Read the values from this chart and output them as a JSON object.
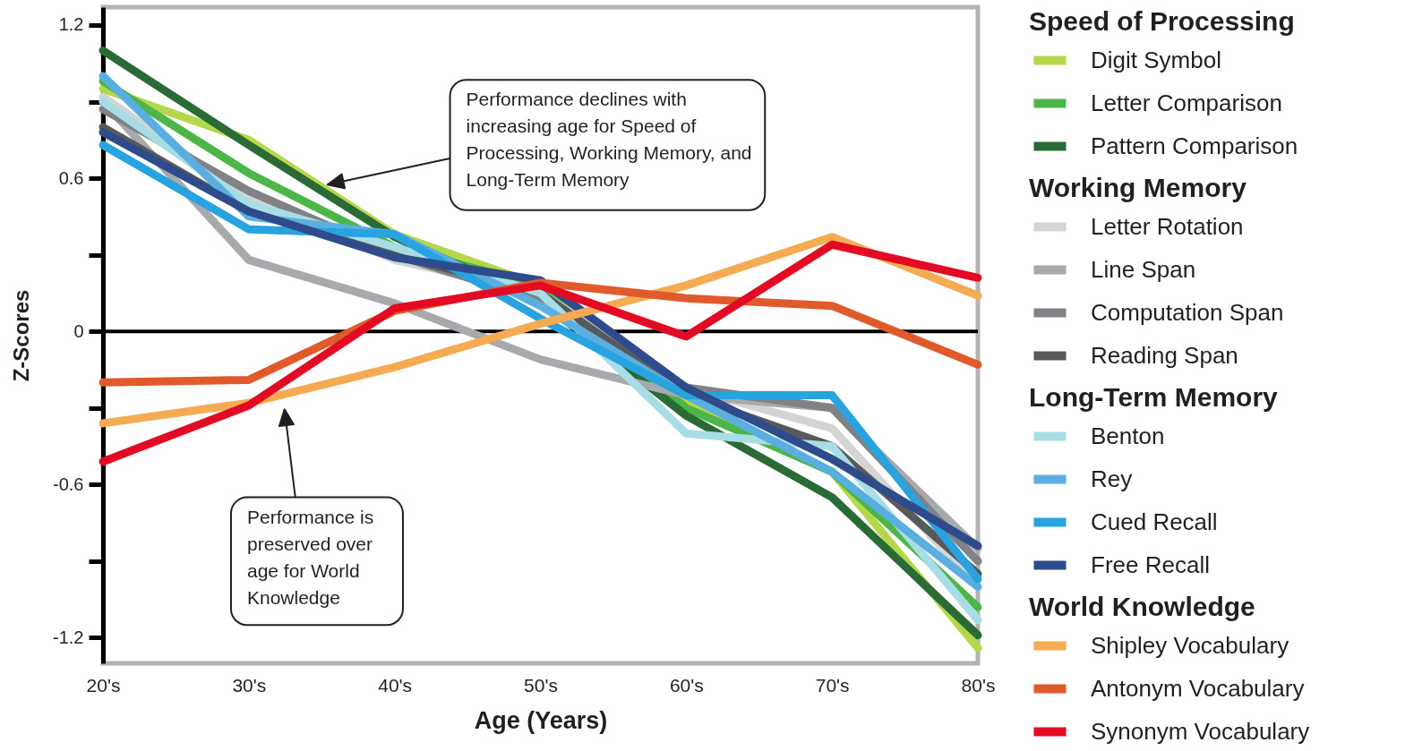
{
  "chart_data": {
    "type": "line",
    "xlabel": "Age (Years)",
    "ylabel": "Z-Scores",
    "categories": [
      "20's",
      "30's",
      "40's",
      "50's",
      "60's",
      "70's",
      "80's"
    ],
    "ylim": [
      -1.3,
      1.27
    ],
    "yticks": [
      -1.2,
      {
        "value": -0.9,
        "label": null
      },
      -0.6,
      {
        "value": -0.3,
        "label": null
      },
      0,
      {
        "value": 0.3,
        "label": null
      },
      0.6,
      {
        "value": 0.9,
        "label": null
      },
      1.2
    ],
    "grid": false,
    "legend": "right",
    "line_style": "solid",
    "marker": "none",
    "ref_lines": [
      {
        "axis": "y",
        "value": 0,
        "color": "#000000"
      }
    ],
    "annotations": [
      "Speed of Processing",
      "Working Memory",
      "Long-Term Memory",
      "World Knowledge",
      "Performance declines with increasing age for Speed of Processing, Working Memory, and Long-Term Memory",
      "Performance is preserved over age for World Knowledge"
    ],
    "series": [
      {
        "name": "Digit Symbol",
        "color": "#b5d84a",
        "values": [
          0.95,
          0.75,
          0.38,
          0.18,
          -0.28,
          -0.55,
          -1.24
        ]
      },
      {
        "name": "Letter Comparison",
        "color": "#4cb748",
        "values": [
          0.98,
          0.62,
          0.33,
          0.18,
          -0.3,
          -0.55,
          -1.08
        ]
      },
      {
        "name": "Pattern Comparison",
        "color": "#2a6a35",
        "values": [
          1.1,
          0.73,
          0.37,
          0.12,
          -0.33,
          -0.65,
          -1.19
        ]
      },
      {
        "name": "Letter Rotation",
        "color": "#d4d4d4",
        "values": [
          0.92,
          0.52,
          0.28,
          0.15,
          -0.22,
          -0.38,
          -1.0
        ]
      },
      {
        "name": "Line Span",
        "color": "#a7a9ac",
        "values": [
          0.9,
          0.28,
          0.11,
          -0.11,
          -0.25,
          -0.3,
          -0.85
        ]
      },
      {
        "name": "Computation Span",
        "color": "#808285",
        "values": [
          0.87,
          0.55,
          0.3,
          0.12,
          -0.22,
          -0.3,
          -0.9
        ]
      },
      {
        "name": "Reading Span",
        "color": "#58595b",
        "values": [
          0.8,
          0.47,
          0.3,
          0.15,
          -0.25,
          -0.45,
          -0.95
        ]
      },
      {
        "name": "Benton",
        "color": "#a8dde5",
        "values": [
          0.9,
          0.5,
          0.33,
          0.15,
          -0.4,
          -0.45,
          -1.13
        ]
      },
      {
        "name": "Rey",
        "color": "#5aafe0",
        "values": [
          1.0,
          0.45,
          0.38,
          0.1,
          -0.25,
          -0.55,
          -1.0
        ]
      },
      {
        "name": "Cued Recall",
        "color": "#29a3e0",
        "values": [
          0.73,
          0.4,
          0.38,
          0.05,
          -0.25,
          -0.25,
          -0.97
        ]
      },
      {
        "name": "Free Recall",
        "color": "#2e4b8b",
        "values": [
          0.78,
          0.47,
          0.29,
          0.2,
          -0.22,
          -0.5,
          -0.84
        ]
      },
      {
        "name": "Shipley Vocabulary",
        "color": "#f5ab52",
        "values": [
          -0.36,
          -0.28,
          -0.14,
          0.03,
          0.18,
          0.37,
          0.14
        ]
      },
      {
        "name": "Antonym Vocabulary",
        "color": "#e05a2b",
        "values": [
          -0.2,
          -0.19,
          0.08,
          0.19,
          0.13,
          0.1,
          -0.13
        ]
      },
      {
        "name": "Synonym Vocabulary",
        "color": "#e30b24",
        "values": [
          -0.51,
          -0.29,
          0.09,
          0.18,
          -0.02,
          0.34,
          0.21
        ]
      }
    ]
  }
}
